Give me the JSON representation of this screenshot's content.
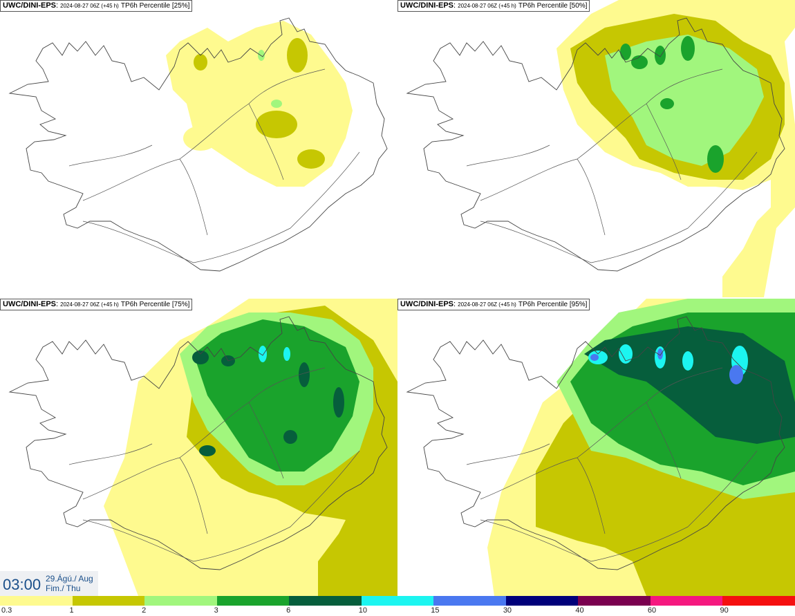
{
  "panels": [
    {
      "model": "UWC/DINI-EPS",
      "meta": "2024-08-27 06Z (+45 h)",
      "product": "TP6h Percentile [25%]",
      "percentile": 25
    },
    {
      "model": "UWC/DINI-EPS",
      "meta": "2024-08-27 06Z (+45 h)",
      "product": "TP6h Percentile [50%]",
      "percentile": 50
    },
    {
      "model": "UWC/DINI-EPS",
      "meta": "2024-08-27 06Z (+45 h)",
      "product": "TP6h Percentile [75%]",
      "percentile": 75
    },
    {
      "model": "UWC/DINI-EPS",
      "meta": "2024-08-27 06Z (+45 h)",
      "product": "TP6h Percentile [95%]",
      "percentile": 95
    }
  ],
  "valid_time": {
    "time": "03:00",
    "date_line1": "29.Ágú./ Aug",
    "date_line2": "Fim./ Thu"
  },
  "colorbar": {
    "ticks": [
      "0.3",
      "1",
      "2",
      "3",
      "6",
      "10",
      "15",
      "30",
      "40",
      "60",
      "90"
    ],
    "colors": [
      "#fefa8f",
      "#c6c702",
      "#a1f67d",
      "#1aa32c",
      "#065e3c",
      "#1cf5f0",
      "#4a78f0",
      "#00007a",
      "#7a004f",
      "#f5187f",
      "#f51010"
    ]
  },
  "map_colors": {
    "level1": "#fefa8f",
    "level2": "#c6c702",
    "level3": "#a1f67d",
    "level4": "#1aa32c",
    "level5": "#065e3c",
    "level6": "#1cf5f0",
    "level7": "#4a78f0"
  }
}
